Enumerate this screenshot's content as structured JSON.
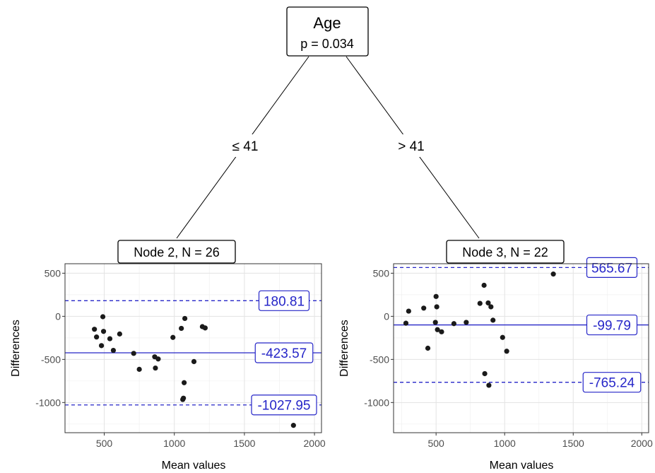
{
  "tree": {
    "root": {
      "title": "Age",
      "pvalue": "p =  0.034"
    },
    "edges": {
      "left": "≤  41",
      "right": ">  41"
    },
    "nodes": [
      {
        "label": "Node 2, N = 26"
      },
      {
        "label": "Node 3, N = 22"
      }
    ]
  },
  "chart_data": [
    {
      "type": "scatter",
      "title": "",
      "xlabel": "Mean values",
      "ylabel": "Differences",
      "xlim": [
        220,
        2050
      ],
      "ylim": [
        -1350,
        610
      ],
      "xticks": [
        500,
        1000,
        1500,
        2000
      ],
      "yticks": [
        500,
        0,
        -500,
        -1000
      ],
      "grid": true,
      "points": [
        {
          "x": 430,
          "y": -150
        },
        {
          "x": 445,
          "y": -240
        },
        {
          "x": 480,
          "y": -340
        },
        {
          "x": 490,
          "y": -5
        },
        {
          "x": 495,
          "y": -175
        },
        {
          "x": 540,
          "y": -260
        },
        {
          "x": 565,
          "y": -395
        },
        {
          "x": 610,
          "y": -205
        },
        {
          "x": 710,
          "y": -430
        },
        {
          "x": 750,
          "y": -615
        },
        {
          "x": 860,
          "y": -470
        },
        {
          "x": 865,
          "y": -600
        },
        {
          "x": 885,
          "y": -495
        },
        {
          "x": 990,
          "y": -245
        },
        {
          "x": 1050,
          "y": -140
        },
        {
          "x": 1060,
          "y": -965
        },
        {
          "x": 1065,
          "y": -950
        },
        {
          "x": 1070,
          "y": -770
        },
        {
          "x": 1075,
          "y": -25
        },
        {
          "x": 1140,
          "y": -525
        },
        {
          "x": 1200,
          "y": -120
        },
        {
          "x": 1220,
          "y": -135
        },
        {
          "x": 1850,
          "y": -1265
        }
      ],
      "lines": [
        {
          "value": 180.81,
          "label": "180.81",
          "style": "dashed"
        },
        {
          "value": -423.57,
          "label": "-423.57",
          "style": "solid"
        },
        {
          "value": -1027.95,
          "label": "-1027.95",
          "style": "dashed"
        }
      ],
      "line_color": "#2626c8"
    },
    {
      "type": "scatter",
      "title": "",
      "xlabel": "Mean values",
      "ylabel": "Differences",
      "xlim": [
        190,
        2050
      ],
      "ylim": [
        -1350,
        610
      ],
      "xticks": [
        500,
        1000,
        1500,
        2000
      ],
      "yticks": [
        500,
        0,
        -500,
        -1000
      ],
      "grid": true,
      "points": [
        {
          "x": 280,
          "y": -80
        },
        {
          "x": 300,
          "y": 60
        },
        {
          "x": 410,
          "y": 95
        },
        {
          "x": 440,
          "y": -370
        },
        {
          "x": 495,
          "y": -70
        },
        {
          "x": 500,
          "y": 230
        },
        {
          "x": 505,
          "y": 110
        },
        {
          "x": 510,
          "y": -155
        },
        {
          "x": 540,
          "y": -180
        },
        {
          "x": 630,
          "y": -85
        },
        {
          "x": 720,
          "y": -70
        },
        {
          "x": 820,
          "y": 150
        },
        {
          "x": 850,
          "y": 360
        },
        {
          "x": 855,
          "y": -665
        },
        {
          "x": 880,
          "y": 155
        },
        {
          "x": 885,
          "y": -800
        },
        {
          "x": 900,
          "y": 110
        },
        {
          "x": 915,
          "y": -45
        },
        {
          "x": 985,
          "y": -245
        },
        {
          "x": 1015,
          "y": -405
        },
        {
          "x": 1355,
          "y": 490
        }
      ],
      "lines": [
        {
          "value": 565.67,
          "label": "565.67",
          "style": "dashed"
        },
        {
          "value": -99.79,
          "label": "-99.79",
          "style": "solid"
        },
        {
          "value": -765.24,
          "label": "-765.24",
          "style": "dashed"
        }
      ],
      "line_color": "#2626c8"
    }
  ]
}
